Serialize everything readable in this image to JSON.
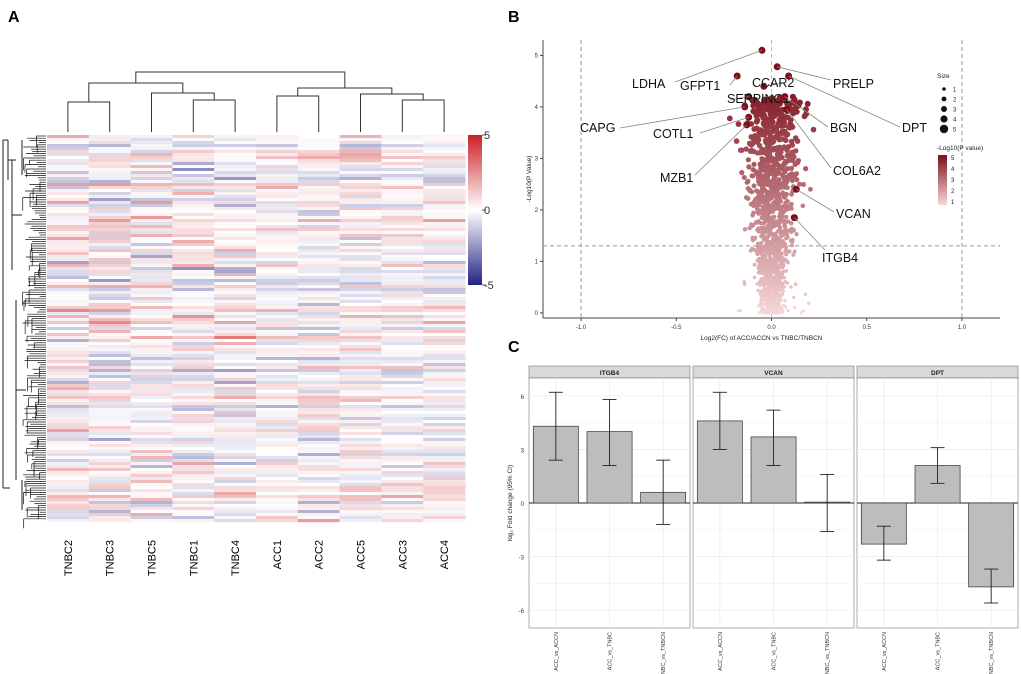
{
  "panels": {
    "a": "A",
    "b": "B",
    "c": "C"
  },
  "heatmap": {
    "samples": [
      "TNBC2",
      "TNBC3",
      "TNBC5",
      "TNBC1",
      "TNBC4",
      "ACC1",
      "ACC2",
      "ACC5",
      "ACC3",
      "ACC4"
    ],
    "colorbar_ticks": [
      5,
      0,
      -5
    ],
    "colorbar_ticks_text": [
      "5",
      "0",
      "-5"
    ],
    "palette": {
      "high": "#cc1f24",
      "mid": "#ffffff",
      "low": "#232385"
    }
  },
  "chart_data": [
    {
      "type": "scatter",
      "subtype": "volcano",
      "xlabel": "Log2(FC) of ACC/ACCN vs TNBC/TNBCN",
      "ylabel": "-Log10(P Value)",
      "xlim": [
        -1.2,
        1.2
      ],
      "ylim": [
        -0.1,
        5.3
      ],
      "xticks": [
        -1.0,
        -0.5,
        0.0,
        0.5,
        1.0
      ],
      "xticks_text": [
        "-1.0",
        "-0.5",
        "0.0",
        "0.5",
        "1.0"
      ],
      "yticks": [
        0,
        1,
        2,
        3,
        4,
        5
      ],
      "yticks_text": [
        "0",
        "1",
        "2",
        "3",
        "4",
        "5"
      ],
      "threshold_y": 1.3,
      "threshold_x": [
        -1.0,
        1.0
      ],
      "labeled_genes": [
        {
          "gene": "LDHA",
          "x": -0.05,
          "y": 5.1
        },
        {
          "gene": "GFPT1",
          "x": -0.18,
          "y": 4.6
        },
        {
          "gene": "CCAR2",
          "x": -0.04,
          "y": 4.4
        },
        {
          "gene": "SERPINC1",
          "x": -0.12,
          "y": 4.2
        },
        {
          "gene": "CAPG",
          "x": -0.14,
          "y": 4.0
        },
        {
          "gene": "COTL1",
          "x": -0.12,
          "y": 3.8
        },
        {
          "gene": "MZB1",
          "x": -0.13,
          "y": 3.65
        },
        {
          "gene": "PRELP",
          "x": 0.03,
          "y": 4.78
        },
        {
          "gene": "DPT",
          "x": 0.09,
          "y": 4.6
        },
        {
          "gene": "BGN",
          "x": 0.07,
          "y": 4.2
        },
        {
          "gene": "COL6A2",
          "x": 0.08,
          "y": 3.95
        },
        {
          "gene": "VCAN",
          "x": 0.13,
          "y": 2.4
        },
        {
          "gene": "ITGB4",
          "x": 0.12,
          "y": 1.85
        }
      ],
      "legend_size": {
        "title": "Size",
        "values": [
          1,
          2,
          3,
          4,
          5
        ],
        "labels": [
          "1",
          "2",
          "3",
          "4",
          "5"
        ]
      },
      "legend_color": {
        "title": "-Log10(P value)",
        "values": [
          5,
          4,
          3,
          2,
          1
        ],
        "labels": [
          "5",
          "4",
          "3",
          "2",
          "1"
        ]
      },
      "colors": {
        "low": "#f6d6d8",
        "high": "#7d0f1b"
      }
    },
    {
      "type": "bar",
      "subtype": "faceted_with_error_bars",
      "ylabel": "log₂ Fold change (95% CI)",
      "ylim": [
        -7,
        7
      ],
      "yticks": [
        -6,
        -3,
        0,
        3,
        6
      ],
      "yticks_text": [
        "-6",
        "-3",
        "0",
        "3",
        "6"
      ],
      "categories": [
        "ACC_vs_ACCN",
        "ACC_vs_TNBC",
        "TNBC_vs_TNBCN"
      ],
      "facets": [
        {
          "name": "ITGB4",
          "values": [
            4.3,
            4.0,
            0.6
          ],
          "ci_low": [
            2.4,
            2.1,
            -1.2
          ],
          "ci_high": [
            6.2,
            5.8,
            2.4
          ]
        },
        {
          "name": "VCAN",
          "values": [
            4.6,
            3.7,
            0.05
          ],
          "ci_low": [
            3.0,
            2.1,
            -1.6
          ],
          "ci_high": [
            6.2,
            5.2,
            1.6
          ]
        },
        {
          "name": "DPT",
          "values": [
            -2.3,
            2.1,
            -4.7
          ],
          "ci_low": [
            -3.2,
            1.1,
            -5.6
          ],
          "ci_high": [
            -1.3,
            3.1,
            -3.7
          ]
        }
      ],
      "colors": {
        "bar": "#bdbdbd",
        "strip": "#d9d9d9",
        "panel": "#ffffff",
        "grid": "#ececec"
      }
    }
  ]
}
